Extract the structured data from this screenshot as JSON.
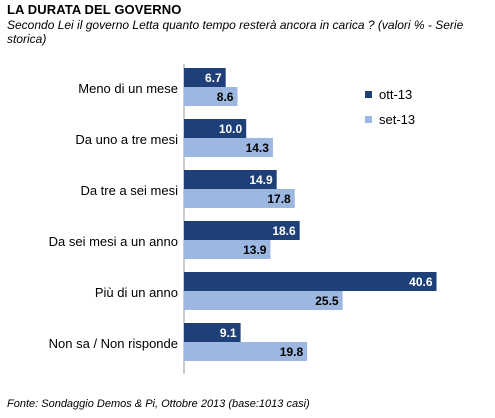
{
  "colors": {
    "series1": "#1f3f79",
    "series2": "#9db8e0",
    "label_on_dark": "#ffffff",
    "label_on_light": "#000000"
  },
  "chart_data": {
    "type": "bar",
    "orientation": "horizontal",
    "title": "LA DURATA DEL GOVERNO",
    "subtitle": "Secondo Lei il governo Letta quanto tempo resterà ancora in carica ? (valori % - Serie storica)",
    "source": "Fonte: Sondaggio Demos & Pi, Ottobre 2013 (base:1013 casi)",
    "categories": [
      "Meno di un mese",
      "Da uno a tre mesi",
      "Da tre a sei mesi",
      "Da sei mesi a un anno",
      "Più di un anno",
      "Non sa / Non risponde"
    ],
    "series": [
      {
        "name": "ott-13",
        "values": [
          6.7,
          10.0,
          14.9,
          18.6,
          40.6,
          9.1
        ],
        "labels": [
          "6.7",
          "10.0",
          "14.9",
          "18.6",
          "40.6",
          "9.1"
        ]
      },
      {
        "name": "set-13",
        "values": [
          8.6,
          14.3,
          17.8,
          13.9,
          25.5,
          19.8
        ],
        "labels": [
          "8.6",
          "14.3",
          "17.8",
          "13.9",
          "25.5",
          "19.8"
        ]
      }
    ],
    "xlim": [
      0,
      45
    ],
    "grid": false,
    "legend": "right"
  }
}
